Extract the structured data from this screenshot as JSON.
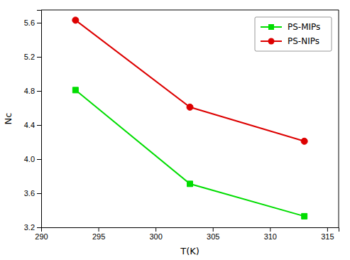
{
  "chart_data": {
    "type": "line",
    "x": [
      293,
      303,
      313
    ],
    "series": [
      {
        "name": "PS-MIPs",
        "color": "#00dd00",
        "marker": "square",
        "values": [
          4.81,
          3.71,
          3.33
        ]
      },
      {
        "name": "PS-NIPs",
        "color": "#dd0000",
        "marker": "circle",
        "values": [
          5.63,
          4.61,
          4.21
        ]
      }
    ],
    "xlabel": "T(K)",
    "ylabel": "Nc",
    "xlim": [
      290,
      316
    ],
    "ylim": [
      3.2,
      5.75
    ],
    "xticks": [
      290,
      295,
      300,
      305,
      310,
      315
    ],
    "yticks": [
      3.2,
      3.6,
      {
        "value": 4.0,
        "label": "4.0"
      },
      4.4,
      4.8,
      5.2,
      5.6
    ],
    "grid": false,
    "legend": "upper right"
  }
}
